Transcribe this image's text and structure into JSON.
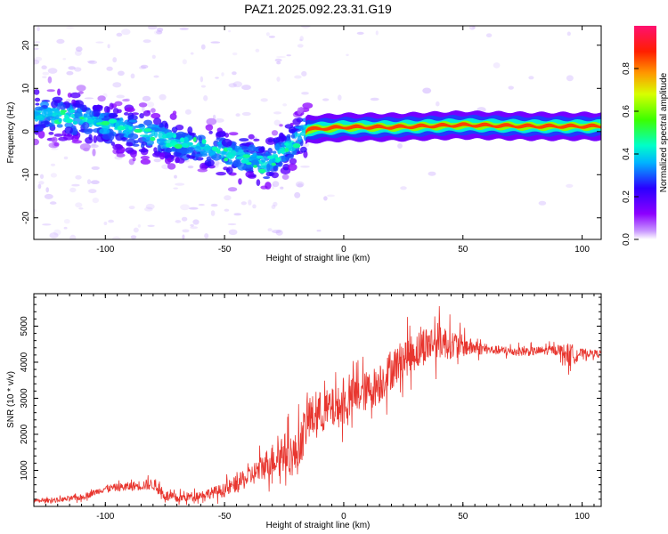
{
  "title": "PAZ1.2025.092.23.31.G19",
  "chart_data": [
    {
      "type": "heatmap",
      "xlabel": "Height of straight line (km)",
      "ylabel": "Frequency (Hz)",
      "xlim": [
        -130,
        108
      ],
      "ylim": [
        -25,
        24.5
      ],
      "x_ticks": [
        "-100",
        "-50",
        "0",
        "50",
        "100"
      ],
      "y_ticks": [
        "20",
        "10",
        "0",
        "-10",
        "-20"
      ],
      "colorbar": {
        "label": "Normalized spectral amplitude",
        "ticks": [
          "0.0",
          "0.2",
          "0.4",
          "0.6",
          "0.8"
        ],
        "range": [
          0,
          1
        ],
        "colormap": "rainbow (purple-blue-cyan-green-yellow-red)"
      },
      "ridge": [
        {
          "x": -125,
          "y": 4
        },
        {
          "x": -110,
          "y": 3
        },
        {
          "x": -100,
          "y": 1.5
        },
        {
          "x": -90,
          "y": 0.5
        },
        {
          "x": -80,
          "y": -1
        },
        {
          "x": -70,
          "y": -2.5
        },
        {
          "x": -60,
          "y": -3.5
        },
        {
          "x": -50,
          "y": -5
        },
        {
          "x": -40,
          "y": -6
        },
        {
          "x": -33,
          "y": -8
        },
        {
          "x": -25,
          "y": -4
        },
        {
          "x": -20,
          "y": -2
        },
        {
          "x": -15,
          "y": 0.5
        },
        {
          "x": 0,
          "y": 1
        },
        {
          "x": 20,
          "y": 1
        },
        {
          "x": 50,
          "y": 1.5
        },
        {
          "x": 80,
          "y": 1.2
        },
        {
          "x": 108,
          "y": 1.2
        }
      ]
    },
    {
      "type": "line",
      "xlabel": "Height of straight line (km)",
      "ylabel": "SNR (10 * v/v)",
      "xlim": [
        -130,
        108
      ],
      "ylim": [
        0,
        5900
      ],
      "x_ticks": [
        "-100",
        "-50",
        "0",
        "50",
        "100"
      ],
      "y_ticks": [
        "1000",
        "2000",
        "3000",
        "4000",
        "5000"
      ],
      "series": [
        {
          "color": "#e8362f",
          "points": [
            {
              "x": -130,
              "y": 150
            },
            {
              "x": -120,
              "y": 180
            },
            {
              "x": -110,
              "y": 250
            },
            {
              "x": -100,
              "y": 500
            },
            {
              "x": -90,
              "y": 550
            },
            {
              "x": -80,
              "y": 620
            },
            {
              "x": -75,
              "y": 300
            },
            {
              "x": -70,
              "y": 220
            },
            {
              "x": -60,
              "y": 320
            },
            {
              "x": -50,
              "y": 450
            },
            {
              "x": -40,
              "y": 800
            },
            {
              "x": -30,
              "y": 1300
            },
            {
              "x": -25,
              "y": 1500
            },
            {
              "x": -20,
              "y": 1400
            },
            {
              "x": -15,
              "y": 2400
            },
            {
              "x": -10,
              "y": 2600
            },
            {
              "x": -5,
              "y": 2700
            },
            {
              "x": 0,
              "y": 2800
            },
            {
              "x": 5,
              "y": 3100
            },
            {
              "x": 10,
              "y": 3200
            },
            {
              "x": 15,
              "y": 3400
            },
            {
              "x": 20,
              "y": 3800
            },
            {
              "x": 25,
              "y": 4100
            },
            {
              "x": 30,
              "y": 4300
            },
            {
              "x": 35,
              "y": 4500
            },
            {
              "x": 40,
              "y": 4600
            },
            {
              "x": 45,
              "y": 4500
            },
            {
              "x": 50,
              "y": 4450
            },
            {
              "x": 60,
              "y": 4350
            },
            {
              "x": 70,
              "y": 4300
            },
            {
              "x": 80,
              "y": 4300
            },
            {
              "x": 90,
              "y": 4350
            },
            {
              "x": 95,
              "y": 4200
            },
            {
              "x": 100,
              "y": 4250
            },
            {
              "x": 108,
              "y": 4250
            }
          ],
          "noise": [
            {
              "x": -130,
              "y": 60
            },
            {
              "x": -100,
              "y": 120
            },
            {
              "x": -80,
              "y": 200
            },
            {
              "x": -60,
              "y": 150
            },
            {
              "x": -40,
              "y": 350
            },
            {
              "x": -20,
              "y": 800
            },
            {
              "x": 0,
              "y": 700
            },
            {
              "x": 20,
              "y": 700
            },
            {
              "x": 40,
              "y": 650
            },
            {
              "x": 50,
              "y": 380
            },
            {
              "x": 60,
              "y": 160
            },
            {
              "x": 90,
              "y": 160
            },
            {
              "x": 95,
              "y": 420
            },
            {
              "x": 100,
              "y": 150
            },
            {
              "x": 108,
              "y": 100
            }
          ]
        }
      ]
    }
  ]
}
